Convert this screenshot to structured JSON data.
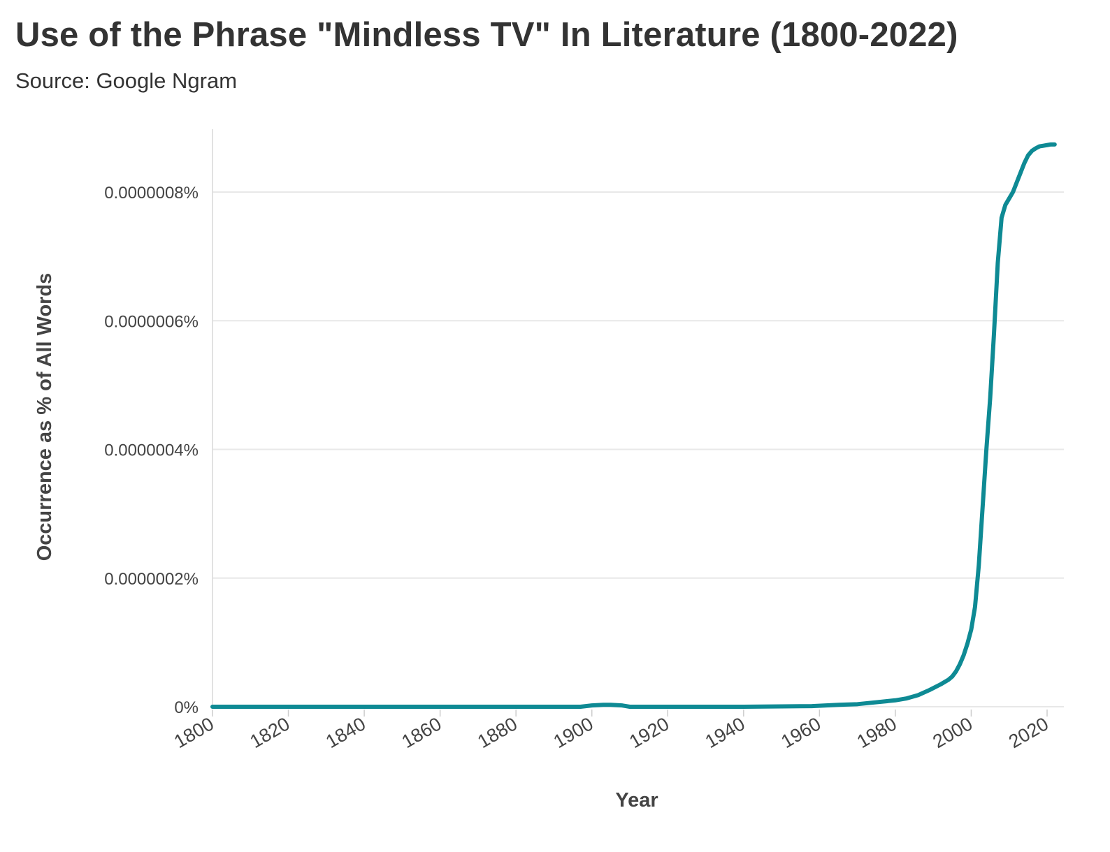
{
  "chart_data": {
    "type": "line",
    "title": "Use of the Phrase \"Mindless TV\" In Literature (1800-2022)",
    "subtitle": "Source: Google Ngram",
    "xlabel": "Year",
    "ylabel": "Occurrence as % of All Words",
    "xlim": [
      1800,
      2022
    ],
    "ylim": [
      0,
      8.8e-07
    ],
    "grid": "horizontal",
    "legend": "none",
    "line_color": "#0e8a94",
    "x_ticks": [
      1800,
      1820,
      1840,
      1860,
      1880,
      1900,
      1920,
      1940,
      1960,
      1980,
      2000,
      2020
    ],
    "x_tick_labels": [
      "1800",
      "1820",
      "1840",
      "1860",
      "1880",
      "1900",
      "1920",
      "1940",
      "1960",
      "1980",
      "2000",
      "2020"
    ],
    "y_ticks": [
      0,
      2e-07,
      4e-07,
      6e-07,
      8e-07
    ],
    "y_tick_labels": [
      "0%",
      "0.0000002%",
      "0.0000004%",
      "0.0000006%",
      "0.0000008%"
    ],
    "series": [
      {
        "x": [
          1800,
          1820,
          1840,
          1860,
          1880,
          1897,
          1900,
          1903,
          1905,
          1908,
          1910,
          1920,
          1940,
          1950,
          1958,
          1965,
          1970,
          1975,
          1980,
          1983,
          1986,
          1989,
          1992,
          1994,
          1995,
          1996,
          1997,
          1998,
          1999,
          2000,
          2001,
          2002,
          2003,
          2004,
          2005,
          2006,
          2007,
          2008,
          2009,
          2010,
          2011,
          2012,
          2013,
          2014,
          2015,
          2016,
          2017,
          2018,
          2019,
          2020,
          2021,
          2022
        ],
        "values": [
          0,
          0,
          0,
          0,
          0,
          0,
          2e-09,
          3e-09,
          3e-09,
          2e-09,
          0,
          0,
          0,
          5e-10,
          1e-09,
          3e-09,
          4e-09,
          7e-09,
          1e-08,
          1.3e-08,
          1.8e-08,
          2.6e-08,
          3.5e-08,
          4.2e-08,
          4.7e-08,
          5.5e-08,
          6.6e-08,
          8e-08,
          9.8e-08,
          1.2e-07,
          1.55e-07,
          2.2e-07,
          3.1e-07,
          4e-07,
          4.8e-07,
          5.8e-07,
          6.9e-07,
          7.6e-07,
          7.8e-07,
          7.9e-07,
          8e-07,
          8.15e-07,
          8.3e-07,
          8.45e-07,
          8.57e-07,
          8.64e-07,
          8.68e-07,
          8.71e-07,
          8.72e-07,
          8.73e-07,
          8.74e-07,
          8.74e-07
        ]
      }
    ]
  }
}
